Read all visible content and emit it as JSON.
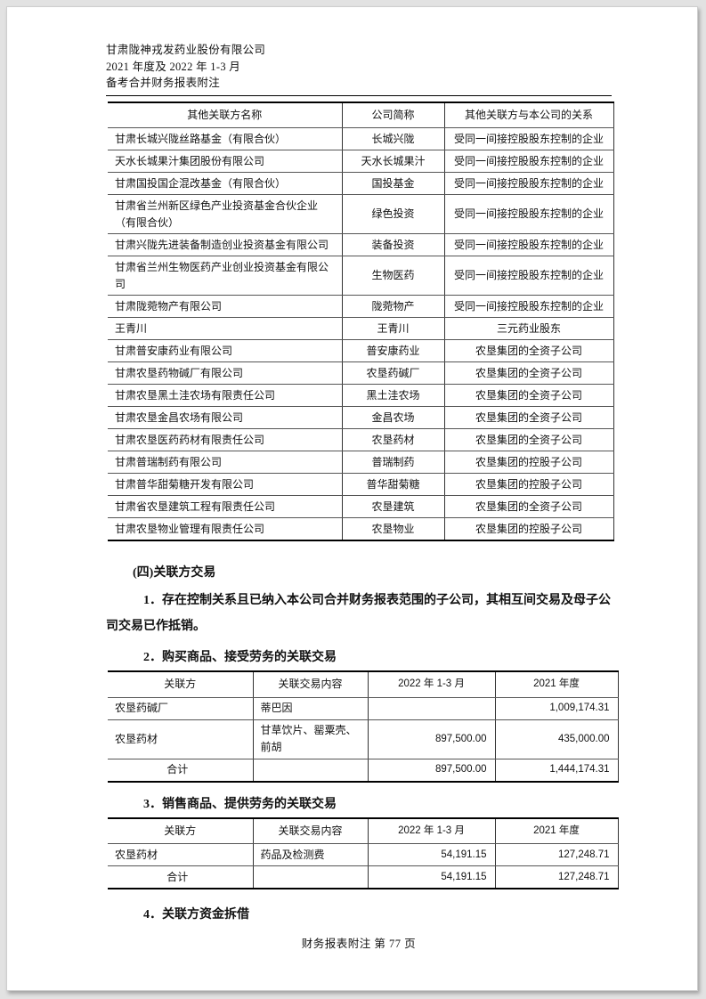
{
  "page": {
    "header_lines": {
      "company": "甘肃陇神戎发药业股份有限公司",
      "period": "2021 年度及 2022 年 1-3 月",
      "doc_type": "备考合并财务报表附注"
    },
    "footer": "财务报表附注  第 77 页"
  },
  "related_party_table": {
    "headers": [
      "其他关联方名称",
      "公司简称",
      "其他关联方与本公司的关系"
    ],
    "rows": [
      [
        "甘肃长城兴陇丝路基金（有限合伙）",
        "长城兴陇",
        "受同一间接控股股东控制的企业"
      ],
      [
        "天水长城果汁集团股份有限公司",
        "天水长城果汁",
        "受同一间接控股股东控制的企业"
      ],
      [
        "甘肃国投国企混改基金（有限合伙）",
        "国投基金",
        "受同一间接控股股东控制的企业"
      ],
      [
        "甘肃省兰州新区绿色产业投资基金合伙企业（有限合伙）",
        "绿色投资",
        "受同一间接控股股东控制的企业"
      ],
      [
        "甘肃兴陇先进装备制造创业投资基金有限公司",
        "装备投资",
        "受同一间接控股股东控制的企业"
      ],
      [
        "甘肃省兰州生物医药产业创业投资基金有限公司",
        "生物医药",
        "受同一间接控股股东控制的企业"
      ],
      [
        "甘肃陇菀物产有限公司",
        "陇菀物产",
        "受同一间接控股股东控制的企业"
      ],
      [
        "王青川",
        "王青川",
        "三元药业股东"
      ],
      [
        "甘肃普安康药业有限公司",
        "普安康药业",
        "农垦集团的全资子公司"
      ],
      [
        "甘肃农垦药物碱厂有限公司",
        "农垦药碱厂",
        "农垦集团的全资子公司"
      ],
      [
        "甘肃农垦黑土洼农场有限责任公司",
        "黑土洼农场",
        "农垦集团的全资子公司"
      ],
      [
        "甘肃农垦金昌农场有限公司",
        "金昌农场",
        "农垦集团的全资子公司"
      ],
      [
        "甘肃农垦医药药材有限责任公司",
        "农垦药材",
        "农垦集团的全资子公司"
      ],
      [
        "甘肃普瑞制药有限公司",
        "普瑞制药",
        "农垦集团的控股子公司"
      ],
      [
        "甘肃普华甜菊糖开发有限公司",
        "普华甜菊糖",
        "农垦集团的控股子公司"
      ],
      [
        "甘肃省农垦建筑工程有限责任公司",
        "农垦建筑",
        "农垦集团的全资子公司"
      ],
      [
        "甘肃农垦物业管理有限责任公司",
        "农垦物业",
        "农垦集团的控股子公司"
      ]
    ]
  },
  "section4": {
    "title": "(四)关联方交易",
    "item1_text": "1．存在控制关系且已纳入本公司合并财务报表范围的子公司，其相互间交易及母子公司交易已作抵销。",
    "item2_title": "2．购买商品、接受劳务的关联交易",
    "item3_title": "3．销售商品、提供劳务的关联交易",
    "item4_title": "4．关联方资金拆借"
  },
  "purchase_table": {
    "headers": [
      "关联方",
      "关联交易内容",
      "2022 年 1-3 月",
      "2021 年度"
    ],
    "rows": [
      [
        "农垦药碱厂",
        "蒂巴因",
        "",
        "1,009,174.31"
      ],
      [
        "农垦药材",
        "甘草饮片、罂粟壳、前胡",
        "897,500.00",
        "435,000.00"
      ]
    ],
    "total_row": [
      "合计",
      "",
      "897,500.00",
      "1,444,174.31"
    ]
  },
  "sales_table": {
    "headers": [
      "关联方",
      "关联交易内容",
      "2022 年 1-3 月",
      "2021 年度"
    ],
    "rows": [
      [
        "农垦药材",
        "药品及检测费",
        "54,191.15",
        "127,248.71"
      ]
    ],
    "total_row": [
      "合计",
      "",
      "54,191.15",
      "127,248.71"
    ]
  }
}
